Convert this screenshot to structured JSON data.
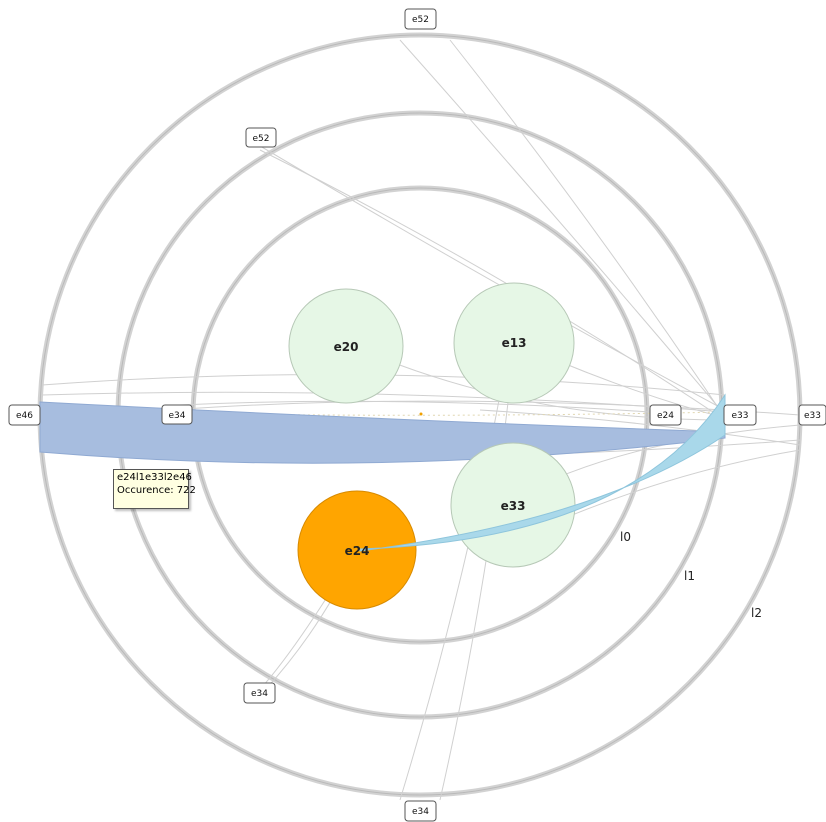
{
  "rings": [
    {
      "id": "l0",
      "label": "l0"
    },
    {
      "id": "l1",
      "label": "l1"
    },
    {
      "id": "l2",
      "label": "l2"
    }
  ],
  "nodes": [
    {
      "id": "e20",
      "label": "e20",
      "state": "default"
    },
    {
      "id": "e13",
      "label": "e13",
      "state": "default"
    },
    {
      "id": "e33",
      "label": "e33",
      "state": "default"
    },
    {
      "id": "e24",
      "label": "e24",
      "state": "selected"
    }
  ],
  "ring_tags": [
    {
      "id": "l2-top",
      "label": "e52"
    },
    {
      "id": "l1-top",
      "label": "e52"
    },
    {
      "id": "l2-left",
      "label": "e46"
    },
    {
      "id": "l1-left",
      "label": "e34"
    },
    {
      "id": "l0-right",
      "label": "e24"
    },
    {
      "id": "l1-right",
      "label": "e33"
    },
    {
      "id": "l2-right",
      "label": "e33"
    },
    {
      "id": "l1-bottom",
      "label": "e34"
    },
    {
      "id": "l2-bottom",
      "label": "e34"
    }
  ],
  "tooltip": {
    "path": "e24l1e33l2e46",
    "occurrence": "Occurence: 722"
  },
  "colors": {
    "ring": "#c4c4c4",
    "node_fill": "#e6f7e6",
    "node_stroke": "#b6c8b6",
    "selected_fill": "#ffa500",
    "band_l2": "#a7bddf",
    "band_l1": "#a9d8ea"
  }
}
